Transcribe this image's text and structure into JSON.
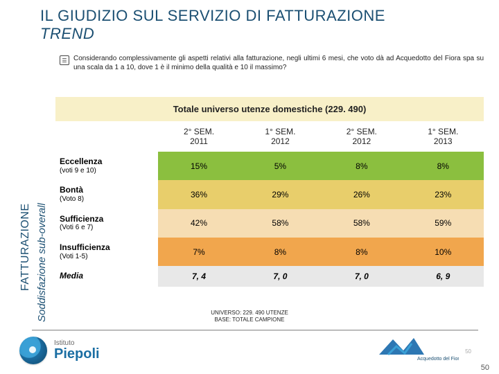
{
  "title_line1": "IL GIUDIZIO SUL SERVIZIO DI FATTURAZIONE",
  "title_line2": "TREND",
  "question": "Considerando complessivamente gli aspetti relativi alla fatturazione, negli ultimi 6 mesi, che voto dà ad Acquedotto del Fiora spa su una scala da 1 a 10, dove 1 è il minimo della qualità e 10 il massimo?",
  "sidebar": {
    "main": "FATTURAZIONE",
    "sub": "Soddisfazione sub-overall"
  },
  "table": {
    "title": "Totale universo utenze domestiche (229. 490)",
    "columns": [
      {
        "line1": "2° SEM.",
        "line2": "2011"
      },
      {
        "line1": "1° SEM.",
        "line2": "2012"
      },
      {
        "line1": "2° SEM.",
        "line2": "2012"
      },
      {
        "line1": "1° SEM.",
        "line2": "2013"
      }
    ],
    "rows": [
      {
        "label": "Eccellenza",
        "sublabel": "(voti 9 e 10)",
        "bg": "#8bbf3f",
        "values": [
          "15%",
          "5%",
          "8%",
          "8%"
        ]
      },
      {
        "label": "Bontà",
        "sublabel": "(Voto 8)",
        "bg": "#e8ce6b",
        "values": [
          "36%",
          "29%",
          "26%",
          "23%"
        ]
      },
      {
        "label": "Sufficienza",
        "sublabel": "(Voti 6 e 7)",
        "bg": "#f6ddb3",
        "values": [
          "42%",
          "58%",
          "58%",
          "59%"
        ]
      },
      {
        "label": "Insufficienza",
        "sublabel": "(Voti 1-5)",
        "bg": "#f1a64d",
        "values": [
          "7%",
          "8%",
          "8%",
          "10%"
        ]
      },
      {
        "label": "Media",
        "sublabel": "",
        "bg": "#e8e8e8",
        "values": [
          "7, 4",
          "7, 0",
          "7, 0",
          "6, 9"
        ],
        "media": true
      }
    ]
  },
  "universe": {
    "line1": "UNIVERSO: 229. 490 UTENZE",
    "line2": "BASE: TOTALE CAMPIONE"
  },
  "footer": {
    "left_brand_small": "Istituto",
    "left_brand_big": "Piepoli",
    "right_brand": "Acquedotto del Fiora",
    "pagenum": "50",
    "faintnum": "50"
  }
}
